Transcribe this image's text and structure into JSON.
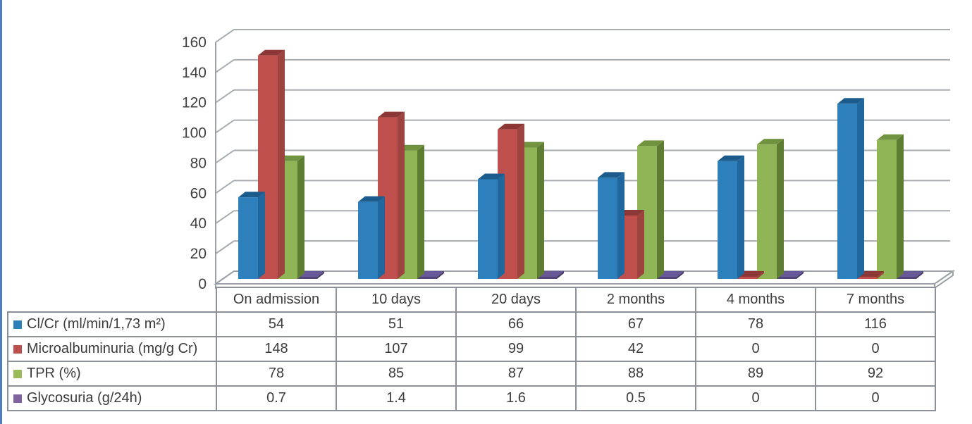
{
  "page": {
    "background": "#FFFFFF",
    "left_accent_color": "#4D7EBB"
  },
  "chart_data": {
    "type": "bar",
    "style": "3d-clustered-column",
    "title": "",
    "xlabel": "",
    "ylabel": "",
    "ylim": [
      0,
      160
    ],
    "y_tick_step": 20,
    "y_ticks": [
      "0",
      "20",
      "40",
      "60",
      "80",
      "100",
      "120",
      "140",
      "160"
    ],
    "grid": "horizontal",
    "legend_position": "table-left",
    "categories": [
      "On admission",
      "10 days",
      "20 days",
      "2 months",
      "4 months",
      "7 months"
    ],
    "series": [
      {
        "name": "Cl/Cr (ml/min/1,73 m²)",
        "values": [
          54,
          51,
          66,
          67,
          78,
          116
        ],
        "display_values": [
          "54",
          "51",
          "66",
          "67",
          "78",
          "116"
        ],
        "color": "#2E80BC",
        "color_top": "#1B5C8C",
        "color_side": "#20679E",
        "legend_color": "#2E80BC"
      },
      {
        "name": "Microalbuminuria (mg/g Cr)",
        "values": [
          148,
          107,
          99,
          42,
          0,
          0
        ],
        "display_values": [
          "148",
          "107",
          "99",
          "42",
          "0",
          "0"
        ],
        "color": "#C0504D",
        "color_top": "#8C3836",
        "color_side": "#9D4340",
        "legend_color": "#C0504D"
      },
      {
        "name": "TPR (%)",
        "values": [
          78,
          85,
          87,
          88,
          89,
          92
        ],
        "display_values": [
          "78",
          "85",
          "87",
          "88",
          "89",
          "92"
        ],
        "color": "#8FB556",
        "color_top": "#71923F",
        "color_side": "#5F7C33",
        "legend_color": "#9BBB59"
      },
      {
        "name": "Glycosuria (g/24h)",
        "values": [
          0.7,
          1.4,
          1.6,
          0.5,
          0,
          0
        ],
        "display_values": [
          "0.7",
          "1.4",
          "1.6",
          "0.5",
          "0",
          "0"
        ],
        "color": "#53457A",
        "color_top": "#675898",
        "color_side": "#473B69",
        "legend_color": "#8064A2"
      }
    ],
    "axis_colors": {
      "gridline": "#A7ACB1",
      "wall_line": "#9BA1A6",
      "tick_label": "#3F3F3F",
      "floor_fill": "#FFFFFF"
    }
  }
}
